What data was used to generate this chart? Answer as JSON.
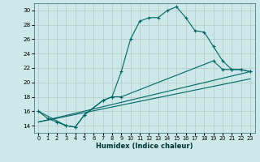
{
  "xlabel": "Humidex (Indice chaleur)",
  "bg_color": "#cce8e8",
  "grid_color": "#bbcccc",
  "line_color": "#006666",
  "xlim": [
    -0.5,
    23.5
  ],
  "ylim": [
    13.0,
    31.0
  ],
  "xticks": [
    0,
    1,
    2,
    3,
    4,
    5,
    6,
    7,
    8,
    9,
    10,
    11,
    12,
    13,
    14,
    15,
    16,
    17,
    18,
    19,
    20,
    21,
    22,
    23
  ],
  "yticks": [
    14,
    16,
    18,
    20,
    22,
    24,
    26,
    28,
    30
  ],
  "line1_x": [
    0,
    1,
    2,
    3,
    4,
    5,
    7,
    8,
    9,
    10,
    11,
    12,
    13,
    14,
    15,
    16,
    17,
    18,
    19,
    20,
    21,
    22,
    23
  ],
  "line1_y": [
    16,
    15,
    14.5,
    14,
    13.8,
    15.5,
    17.5,
    18,
    21.5,
    26.0,
    28.5,
    29.0,
    29.0,
    30.0,
    30.5,
    29.0,
    27.2,
    27.0,
    25.0,
    23.0,
    21.8,
    21.8,
    21.5
  ],
  "line2_x": [
    0,
    3,
    4,
    5,
    7,
    8,
    9,
    19,
    20,
    21,
    22,
    23
  ],
  "line2_y": [
    16,
    14,
    13.8,
    15.5,
    17.5,
    18.0,
    18.0,
    23.0,
    21.8,
    21.8,
    21.8,
    21.5
  ],
  "line3_x": [
    0,
    23
  ],
  "line3_y": [
    14.5,
    20.5
  ],
  "line4_x": [
    0,
    23
  ],
  "line4_y": [
    14.5,
    21.5
  ]
}
